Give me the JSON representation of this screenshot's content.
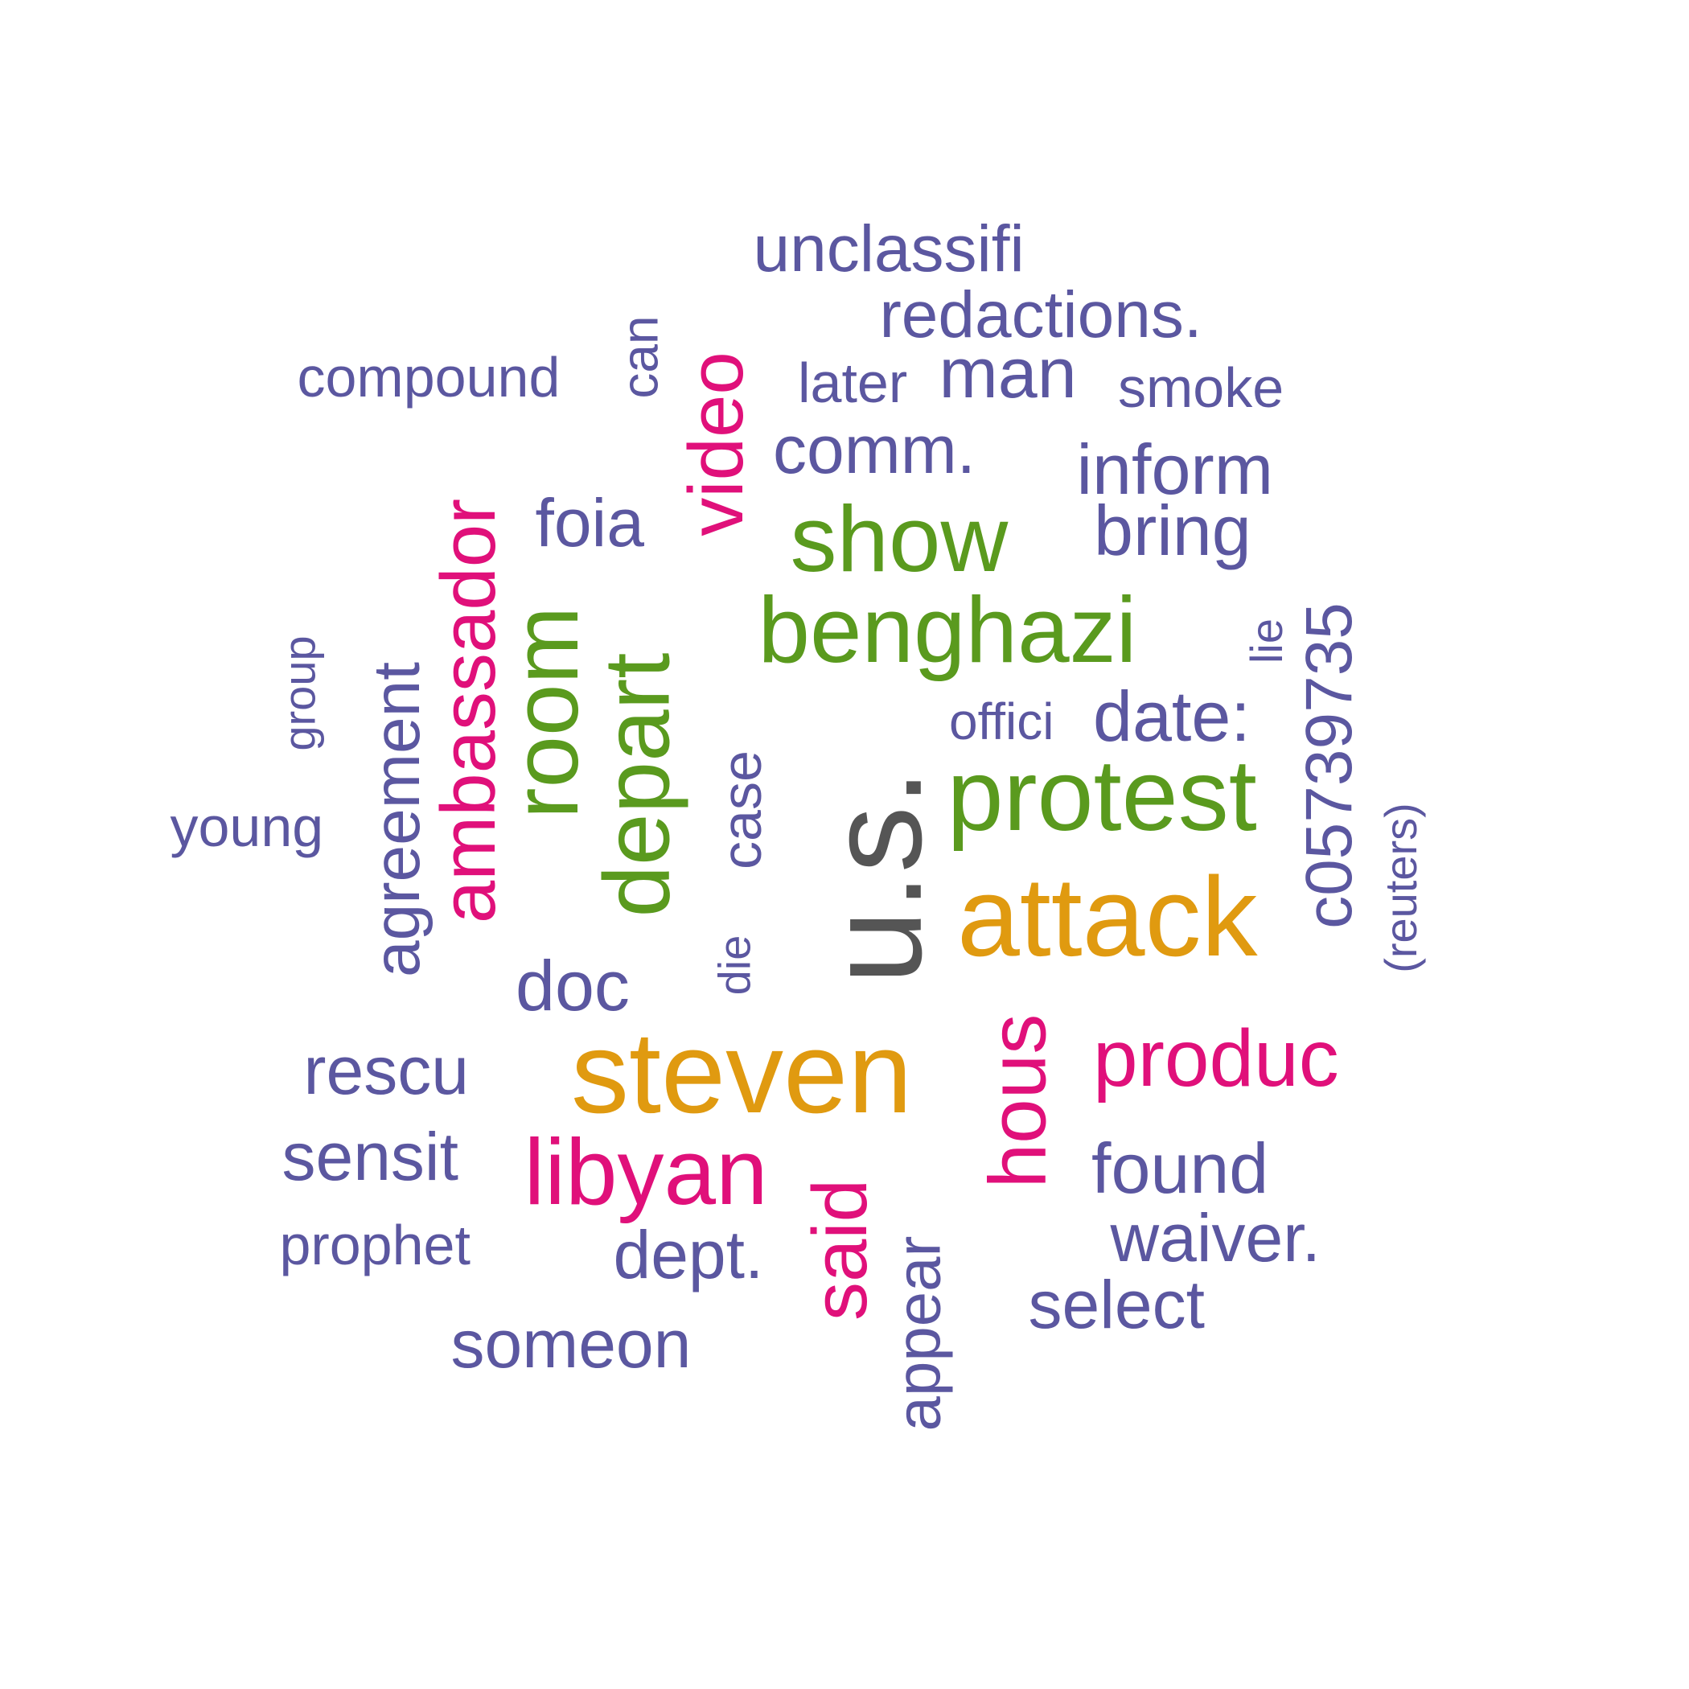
{
  "palette": {
    "slate": "#5b57a0",
    "green": "#5a9a1e",
    "magenta": "#e0107a",
    "gold": "#e09a10",
    "gray": "#555555"
  },
  "words": [
    {
      "text": "unclassifi",
      "color": "slate",
      "rotated": false
    },
    {
      "text": "redactions.",
      "color": "slate",
      "rotated": false
    },
    {
      "text": "compound",
      "color": "slate",
      "rotated": false
    },
    {
      "text": "can",
      "color": "slate",
      "rotated": true
    },
    {
      "text": "video",
      "color": "magenta",
      "rotated": true
    },
    {
      "text": "later",
      "color": "slate",
      "rotated": false
    },
    {
      "text": "man",
      "color": "slate",
      "rotated": false
    },
    {
      "text": "smoke",
      "color": "slate",
      "rotated": false
    },
    {
      "text": "comm.",
      "color": "slate",
      "rotated": false
    },
    {
      "text": "inform",
      "color": "slate",
      "rotated": false
    },
    {
      "text": "ambassador",
      "color": "magenta",
      "rotated": true
    },
    {
      "text": "foia",
      "color": "slate",
      "rotated": false
    },
    {
      "text": "show",
      "color": "green",
      "rotated": false
    },
    {
      "text": "bring",
      "color": "slate",
      "rotated": false
    },
    {
      "text": "room",
      "color": "green",
      "rotated": true
    },
    {
      "text": "benghazi",
      "color": "green",
      "rotated": false
    },
    {
      "text": "c05739735",
      "color": "slate",
      "rotated": true
    },
    {
      "text": "lie",
      "color": "slate",
      "rotated": true
    },
    {
      "text": "group",
      "color": "slate",
      "rotated": true
    },
    {
      "text": "agreement",
      "color": "slate",
      "rotated": true
    },
    {
      "text": "depart",
      "color": "green",
      "rotated": true
    },
    {
      "text": "offici",
      "color": "slate",
      "rotated": false
    },
    {
      "text": "date:",
      "color": "slate",
      "rotated": false
    },
    {
      "text": "u.s.",
      "color": "gray",
      "rotated": true
    },
    {
      "text": "case",
      "color": "slate",
      "rotated": true
    },
    {
      "text": "protest",
      "color": "green",
      "rotated": false
    },
    {
      "text": "young",
      "color": "slate",
      "rotated": false
    },
    {
      "text": "(reuters)",
      "color": "slate",
      "rotated": true
    },
    {
      "text": "attack",
      "color": "gold",
      "rotated": false
    },
    {
      "text": "die",
      "color": "slate",
      "rotated": true
    },
    {
      "text": "doc",
      "color": "slate",
      "rotated": false
    },
    {
      "text": "steven",
      "color": "gold",
      "rotated": false
    },
    {
      "text": "hous",
      "color": "magenta",
      "rotated": true
    },
    {
      "text": "produc",
      "color": "magenta",
      "rotated": false
    },
    {
      "text": "rescu",
      "color": "slate",
      "rotated": false
    },
    {
      "text": "sensit",
      "color": "slate",
      "rotated": false
    },
    {
      "text": "libyan",
      "color": "magenta",
      "rotated": false
    },
    {
      "text": "said",
      "color": "magenta",
      "rotated": true
    },
    {
      "text": "appear",
      "color": "slate",
      "rotated": true
    },
    {
      "text": "found",
      "color": "slate",
      "rotated": false
    },
    {
      "text": "prophet",
      "color": "slate",
      "rotated": false
    },
    {
      "text": "dept.",
      "color": "slate",
      "rotated": false
    },
    {
      "text": "waiver.",
      "color": "slate",
      "rotated": false
    },
    {
      "text": "select",
      "color": "slate",
      "rotated": false
    },
    {
      "text": "someon",
      "color": "slate",
      "rotated": false
    }
  ]
}
